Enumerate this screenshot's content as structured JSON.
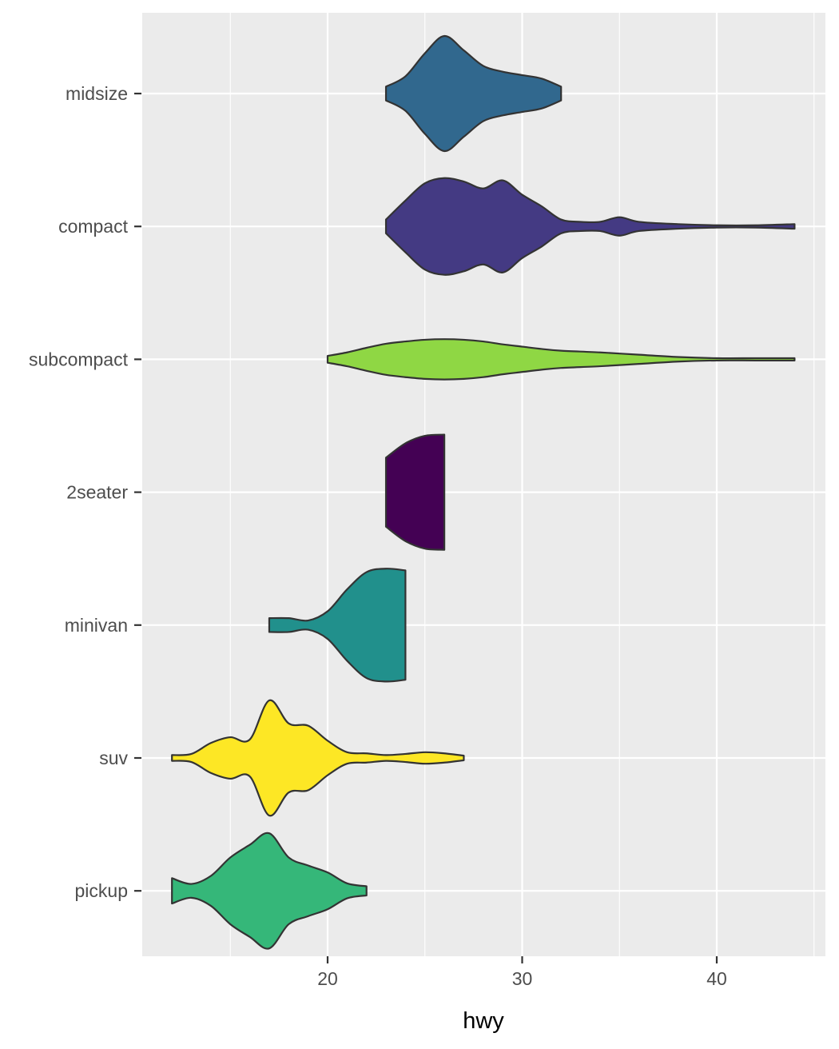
{
  "chart_data": {
    "type": "violin",
    "orientation": "horizontal",
    "title": "",
    "xlabel": "hwy",
    "ylabel": "",
    "xlim": [
      10.6,
      45.4
    ],
    "x_ticks": [
      20,
      30,
      40
    ],
    "x_tick_labels": [
      "20",
      "30",
      "40"
    ],
    "x_minor_ticks": [
      15,
      25,
      35,
      45
    ],
    "categories": [
      "midsize",
      "compact",
      "subcompact",
      "2seater",
      "minivan",
      "suv",
      "pickup"
    ],
    "grid": true,
    "legend": "none",
    "panel_background": "#EBEBEB",
    "outline_color": "#333333",
    "violins": [
      {
        "category": "midsize",
        "fill": "#31688E",
        "min": 23,
        "max": 32,
        "profile": [
          [
            23,
            0.12
          ],
          [
            24,
            0.3
          ],
          [
            25,
            0.7
          ],
          [
            26,
            1.0
          ],
          [
            27,
            0.75
          ],
          [
            28,
            0.48
          ],
          [
            29,
            0.38
          ],
          [
            30,
            0.32
          ],
          [
            31,
            0.26
          ],
          [
            32,
            0.12
          ]
        ]
      },
      {
        "category": "compact",
        "fill": "#443A83",
        "min": 23,
        "max": 44,
        "profile": [
          [
            23,
            0.12
          ],
          [
            24,
            0.45
          ],
          [
            25,
            0.75
          ],
          [
            26,
            0.84
          ],
          [
            27,
            0.78
          ],
          [
            28,
            0.66
          ],
          [
            29,
            0.8
          ],
          [
            30,
            0.55
          ],
          [
            31,
            0.35
          ],
          [
            32,
            0.12
          ],
          [
            33,
            0.08
          ],
          [
            34,
            0.08
          ],
          [
            35,
            0.16
          ],
          [
            36,
            0.08
          ],
          [
            38,
            0.04
          ],
          [
            40,
            0.02
          ],
          [
            42,
            0.02
          ],
          [
            44,
            0.04
          ]
        ]
      },
      {
        "category": "subcompact",
        "fill": "#8FD744",
        "min": 20,
        "max": 44,
        "profile": [
          [
            20,
            0.06
          ],
          [
            21,
            0.12
          ],
          [
            22,
            0.2
          ],
          [
            23,
            0.27
          ],
          [
            24,
            0.31
          ],
          [
            25,
            0.34
          ],
          [
            26,
            0.35
          ],
          [
            27,
            0.34
          ],
          [
            28,
            0.31
          ],
          [
            29,
            0.26
          ],
          [
            30,
            0.22
          ],
          [
            31,
            0.18
          ],
          [
            32,
            0.15
          ],
          [
            34,
            0.12
          ],
          [
            36,
            0.08
          ],
          [
            38,
            0.04
          ],
          [
            40,
            0.02
          ],
          [
            42,
            0.02
          ],
          [
            44,
            0.02
          ]
        ]
      },
      {
        "category": "2seater",
        "fill": "#440154",
        "min": 23,
        "max": 26,
        "profile": [
          [
            23,
            0.6
          ],
          [
            24,
            0.85
          ],
          [
            25,
            0.98
          ],
          [
            26,
            1.0
          ]
        ]
      },
      {
        "category": "minivan",
        "fill": "#21908C",
        "min": 17,
        "max": 24,
        "profile": [
          [
            17,
            0.12
          ],
          [
            18,
            0.12
          ],
          [
            19,
            0.08
          ],
          [
            20,
            0.24
          ],
          [
            21,
            0.62
          ],
          [
            22,
            0.92
          ],
          [
            23,
            0.98
          ],
          [
            24,
            0.95
          ]
        ]
      },
      {
        "category": "suv",
        "fill": "#FDE725",
        "min": 12,
        "max": 27,
        "profile": [
          [
            12,
            0.05
          ],
          [
            13,
            0.07
          ],
          [
            14,
            0.26
          ],
          [
            15,
            0.36
          ],
          [
            16,
            0.32
          ],
          [
            17,
            1.0
          ],
          [
            18,
            0.6
          ],
          [
            19,
            0.56
          ],
          [
            20,
            0.3
          ],
          [
            21,
            0.1
          ],
          [
            22,
            0.08
          ],
          [
            23,
            0.05
          ],
          [
            24,
            0.07
          ],
          [
            25,
            0.1
          ],
          [
            26,
            0.08
          ],
          [
            27,
            0.04
          ]
        ]
      },
      {
        "category": "pickup",
        "fill": "#35B779",
        "min": 12,
        "max": 22,
        "profile": [
          [
            12,
            0.22
          ],
          [
            13,
            0.12
          ],
          [
            14,
            0.26
          ],
          [
            15,
            0.58
          ],
          [
            16,
            0.8
          ],
          [
            17,
            1.0
          ],
          [
            18,
            0.58
          ],
          [
            19,
            0.44
          ],
          [
            20,
            0.32
          ],
          [
            21,
            0.13
          ],
          [
            22,
            0.08
          ]
        ]
      }
    ]
  }
}
